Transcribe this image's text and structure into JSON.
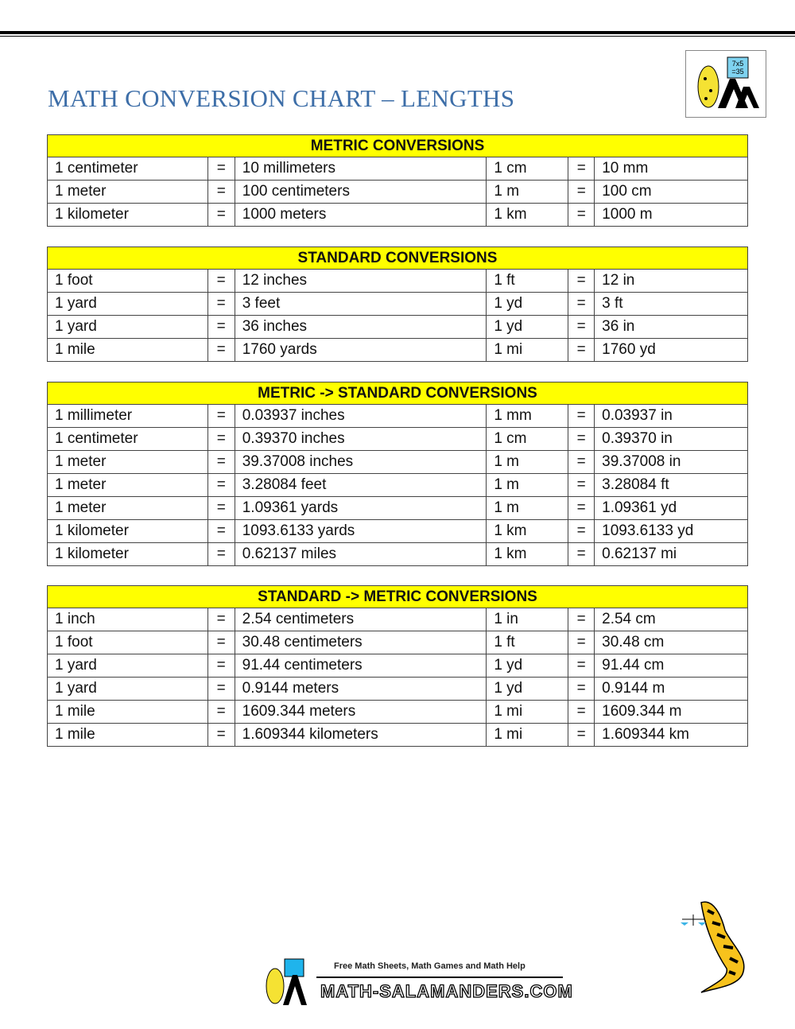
{
  "title": "MATH CONVERSION CHART – LENGTHS",
  "logo": {
    "board_text": "7x5 =35"
  },
  "colors": {
    "title": "#3d6ea8",
    "header_bg": "#ffff00"
  },
  "tables": [
    {
      "heading": "METRIC CONVERSIONS",
      "rows": [
        [
          "1 centimeter",
          "=",
          "10 millimeters",
          "1 cm",
          "=",
          "10 mm"
        ],
        [
          "1 meter",
          "=",
          "100 centimeters",
          "1 m",
          "=",
          "100 cm"
        ],
        [
          "1 kilometer",
          "=",
          "1000 meters",
          "1 km",
          "=",
          "1000 m"
        ]
      ]
    },
    {
      "heading": "STANDARD CONVERSIONS",
      "rows": [
        [
          "1 foot",
          "=",
          "12 inches",
          "1 ft",
          "=",
          "12 in"
        ],
        [
          "1 yard",
          "=",
          "3 feet",
          "1 yd",
          "=",
          "3 ft"
        ],
        [
          "1 yard",
          "=",
          "36 inches",
          "1 yd",
          "=",
          "36 in"
        ],
        [
          "1 mile",
          "=",
          "1760 yards",
          "1 mi",
          "=",
          "1760 yd"
        ]
      ]
    },
    {
      "heading": "METRIC -> STANDARD CONVERSIONS",
      "rows": [
        [
          "1 millimeter",
          "=",
          "0.03937 inches",
          "1 mm",
          "=",
          "0.03937 in"
        ],
        [
          "1 centimeter",
          "=",
          "0.39370 inches",
          "1 cm",
          "=",
          "0.39370 in"
        ],
        [
          "1 meter",
          "=",
          "39.37008 inches",
          "1 m",
          "=",
          "39.37008 in"
        ],
        [
          "1 meter",
          "=",
          "3.28084 feet",
          "1 m",
          "=",
          "3.28084 ft"
        ],
        [
          "1 meter",
          "=",
          "1.09361 yards",
          "1 m",
          "=",
          "1.09361 yd"
        ],
        [
          "1 kilometer",
          "=",
          "1093.6133 yards",
          "1 km",
          "=",
          "1093.6133 yd"
        ],
        [
          "1 kilometer",
          "=",
          "0.62137 miles",
          "1 km",
          "=",
          "0.62137 mi"
        ]
      ]
    },
    {
      "heading": "STANDARD -> METRIC CONVERSIONS",
      "rows": [
        [
          "1 inch",
          "=",
          "2.54 centimeters",
          "1 in",
          "=",
          "2.54 cm"
        ],
        [
          "1 foot",
          "=",
          "30.48 centimeters",
          "1 ft",
          "=",
          "30.48 cm"
        ],
        [
          "1 yard",
          "=",
          "91.44 centimeters",
          "1 yd",
          "=",
          "91.44 cm"
        ],
        [
          "1 yard",
          "=",
          "0.9144 meters",
          "1 yd",
          "=",
          "0.9144 m"
        ],
        [
          "1 mile",
          "=",
          "1609.344 meters",
          "1 mi",
          "=",
          "1609.344 m"
        ],
        [
          "1 mile",
          "=",
          "1.609344 kilometers",
          "1 mi",
          "=",
          "1.609344 km"
        ]
      ]
    }
  ],
  "footer": {
    "tagline": "Free Math Sheets, Math Games and Math Help",
    "site": "MATH-SALAMANDERS.COM"
  }
}
